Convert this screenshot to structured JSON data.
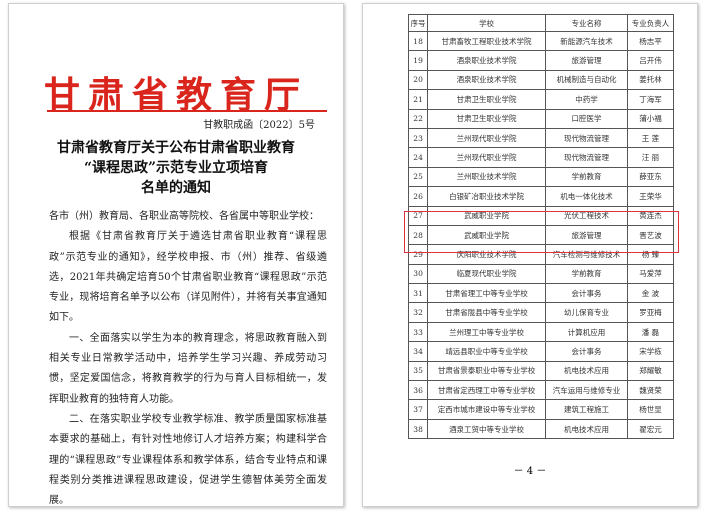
{
  "left_page": {
    "header": "甘肃省教育厅",
    "doc_number": "甘教职成函〔2022〕5号",
    "title_lines": [
      "甘肃省教育厅关于公布甘肃省职业教育",
      "“课程思政”示范专业立项培育",
      "名单的通知"
    ],
    "salutation": "各市（州）教育局、各职业高等院校、各省属中等职业学校：",
    "paragraphs": [
      "根据《甘肃省教育厅关于遴选甘肃省职业教育“课程思政”示范专业的通知》，经学校申报、市（州）推荐、省级遴选，2021年共确定培育50个甘肃省职业教育“课程思政”示范专业，现将培育名单予以公布（详见附件），并将有关事宜通知如下。",
      "一、全面落实以学生为本的教育理念，将思政教育融入到相关专业日常教学活动中，培养学生学习兴趣、养成劳动习惯，坚定爱国信念，将教育教学的行为与育人目标相统一，发挥职业教育的独特育人功能。",
      "二、在落实职业学校专业教学标准、教学质量国家标准基本要求的基础上，有针对性地修订人才培养方案；构建科学合理的“课程思政”专业课程体系和教学体系，结合专业特点和课程类别分类推进课程思政建设，促进学生德智体美劳全面发展。"
    ]
  },
  "right_page": {
    "table": {
      "headers": [
        "序号",
        "学校",
        "专业名称",
        "专业负责人"
      ],
      "rows": [
        [
          "18",
          "甘肃畜牧工程职业技术学院",
          "新能源汽车技术",
          "杨志平"
        ],
        [
          "19",
          "酒泉职业技术学院",
          "旅游管理",
          "吕开伟"
        ],
        [
          "20",
          "酒泉职业技术学院",
          "机械制造与自动化",
          "姜托林"
        ],
        [
          "21",
          "甘肃卫生职业学院",
          "中药学",
          "丁海军"
        ],
        [
          "22",
          "甘肃卫生职业学院",
          "口腔医学",
          "蒲小福"
        ],
        [
          "23",
          "兰州现代职业学院",
          "现代物流管理",
          "王 莲"
        ],
        [
          "24",
          "兰州现代职业学院",
          "现代物流管理",
          "汪 丽"
        ],
        [
          "25",
          "兰州职业技术学院",
          "学前教育",
          "薛亚东"
        ],
        [
          "26",
          "白银矿冶职业技术学院",
          "机电一体化技术",
          "王荣华"
        ],
        [
          "27",
          "武威职业学院",
          "光伏工程技术",
          "黄连杰"
        ],
        [
          "28",
          "武威职业学院",
          "旅游管理",
          "晋艺波"
        ],
        [
          "29",
          "庆阳职业技术学院",
          "汽车检测与维修技术",
          "杨 臻"
        ],
        [
          "30",
          "临夏现代职业学院",
          "学前教育",
          "马爱萍"
        ],
        [
          "31",
          "甘肃省理工中等专业学校",
          "会计事务",
          "金 波"
        ],
        [
          "32",
          "甘肃省陇县中等专业学校",
          "幼儿保育专业",
          "罗亚梅"
        ],
        [
          "33",
          "兰州理工中等专业学校",
          "计算机应用",
          "潘 磊"
        ],
        [
          "34",
          "靖远县职业中等专业学校",
          "会计事务",
          "宋学栋"
        ],
        [
          "35",
          "甘肃省景泰职业中等专业学校",
          "机电技术应用",
          "郑耀敏"
        ],
        [
          "36",
          "甘肃省定西理工中等专业学校",
          "汽车运用与维修专业",
          "魏贤荣"
        ],
        [
          "37",
          "定西市城市建设中等专业学校",
          "建筑工程施工",
          "杨世显"
        ],
        [
          "38",
          "酒泉工贸中等专业学校",
          "机电技术应用",
          "翟宏元"
        ]
      ]
    },
    "page_number": "－ 4 －"
  }
}
